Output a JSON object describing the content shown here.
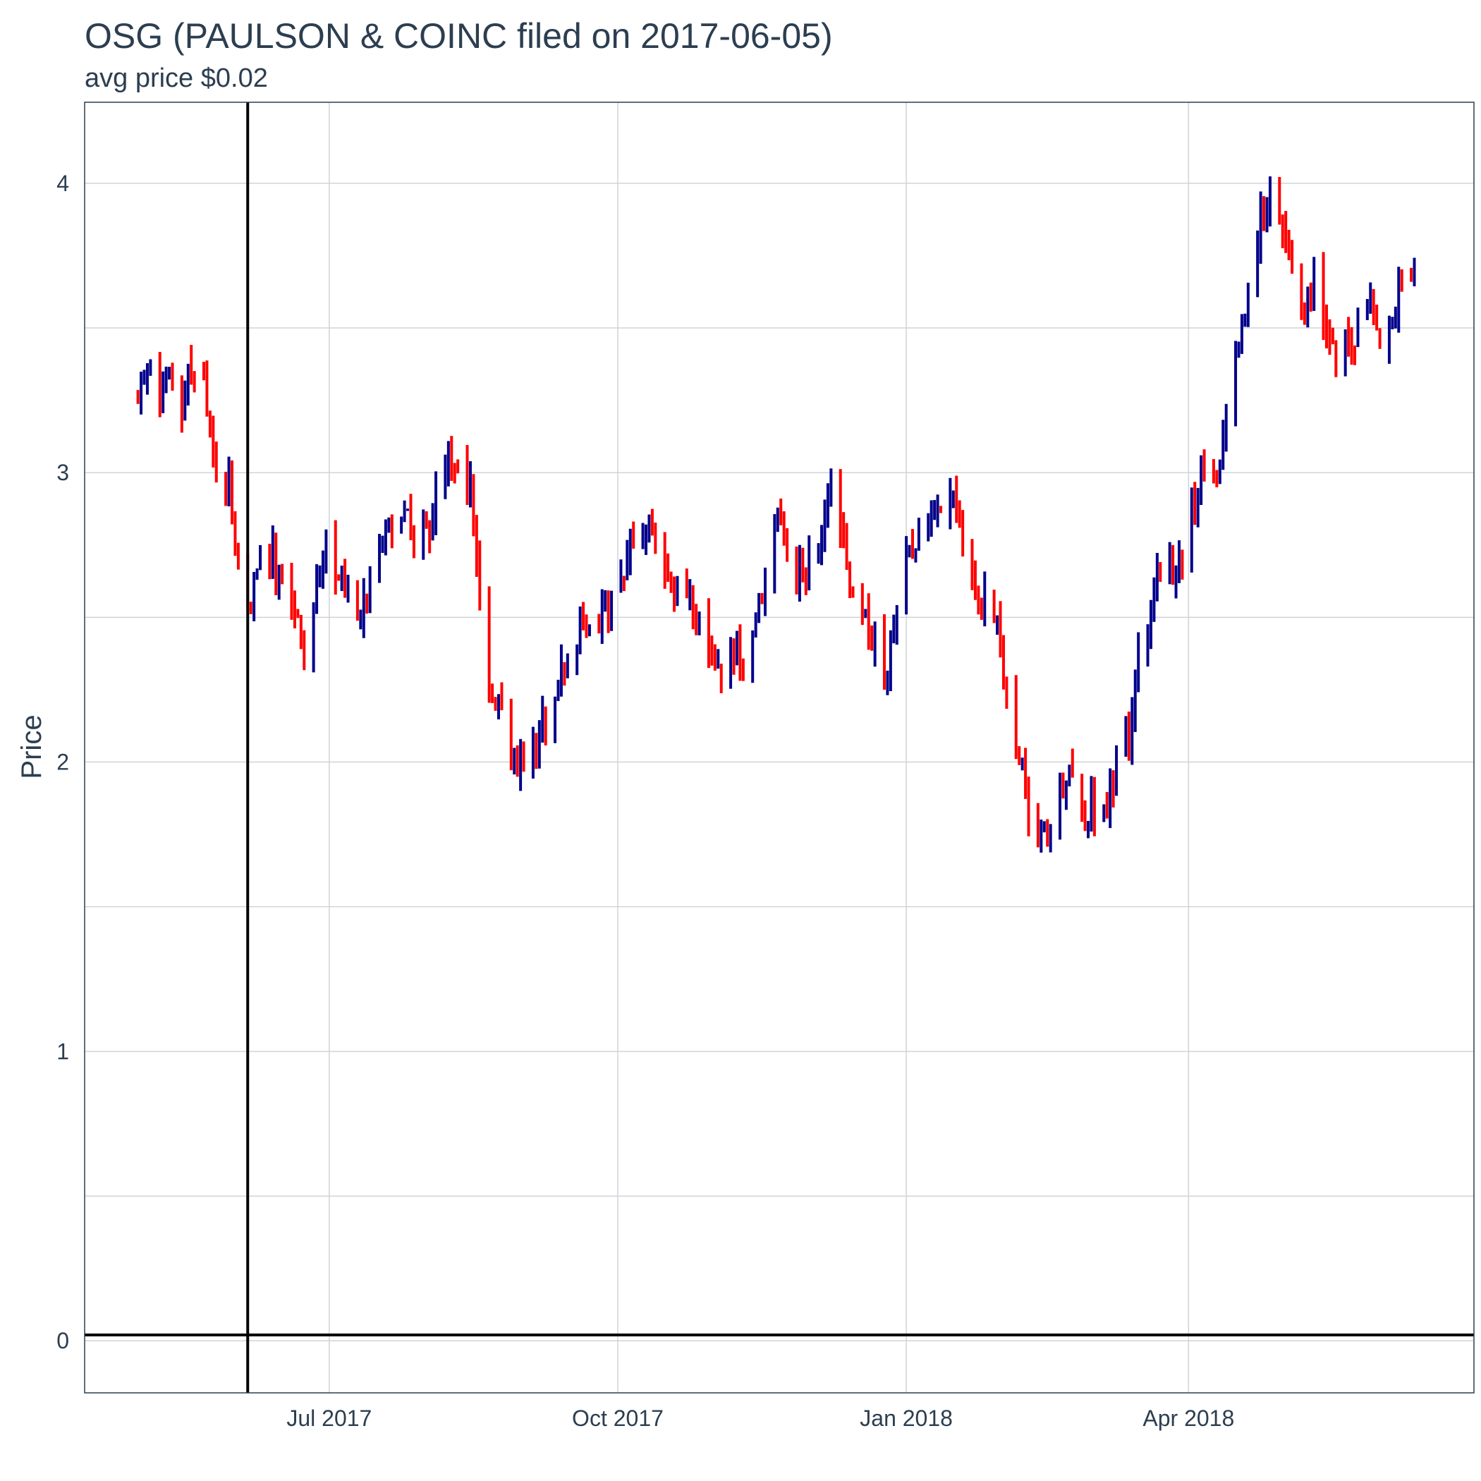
{
  "chart_data": {
    "type": "ohlc",
    "title": "OSG (PAULSON & COINC filed on 2017-06-05)",
    "subtitle": "avg price $0.02",
    "ylabel": "Price",
    "xlabel": "",
    "xlim": [
      "2017-04-14",
      "2018-07-01"
    ],
    "ylim": [
      -0.18,
      4.28
    ],
    "y_ticks": [
      0,
      1,
      2,
      3,
      4
    ],
    "x_ticks": [
      {
        "date": "2017-07-01",
        "label": "Jul 2017"
      },
      {
        "date": "2017-10-01",
        "label": "Oct 2017"
      },
      {
        "date": "2018-01-01",
        "label": "Jan 2018"
      },
      {
        "date": "2018-04-01",
        "label": "Apr 2018"
      }
    ],
    "grid": true,
    "reference_lines": {
      "filing_date": "2017-06-05",
      "avg_price": 0.02
    },
    "colors": {
      "up": "#00008b",
      "down": "#ff0000",
      "reference": "#000000",
      "grid": "#d0d3d8",
      "border": "#2c3e50",
      "text": "#2c3e50"
    },
    "series": [
      {
        "name": "",
        "control_points": [
          [
            "2017-05-01",
            3.25
          ],
          [
            "2017-05-04",
            3.38
          ],
          [
            "2017-05-08",
            3.22
          ],
          [
            "2017-05-11",
            3.3
          ],
          [
            "2017-05-15",
            3.25
          ],
          [
            "2017-05-18",
            3.35
          ],
          [
            "2017-05-22",
            3.28
          ],
          [
            "2017-05-25",
            3.05
          ],
          [
            "2017-05-30",
            2.95
          ],
          [
            "2017-06-02",
            2.65
          ],
          [
            "2017-06-05",
            2.55
          ],
          [
            "2017-06-09",
            2.65
          ],
          [
            "2017-06-13",
            2.72
          ],
          [
            "2017-06-16",
            2.6
          ],
          [
            "2017-06-20",
            2.5
          ],
          [
            "2017-06-23",
            2.42
          ],
          [
            "2017-06-27",
            2.6
          ],
          [
            "2017-06-30",
            2.75
          ],
          [
            "2017-07-05",
            2.6
          ],
          [
            "2017-07-10",
            2.5
          ],
          [
            "2017-07-14",
            2.6
          ],
          [
            "2017-07-19",
            2.8
          ],
          [
            "2017-07-24",
            2.9
          ],
          [
            "2017-07-28",
            2.75
          ],
          [
            "2017-08-02",
            2.8
          ],
          [
            "2017-08-07",
            3.05
          ],
          [
            "2017-08-11",
            3.0
          ],
          [
            "2017-08-15",
            2.95
          ],
          [
            "2017-08-18",
            2.6
          ],
          [
            "2017-08-21",
            2.28
          ],
          [
            "2017-08-25",
            2.15
          ],
          [
            "2017-08-29",
            2.0
          ],
          [
            "2017-09-01",
            2.0
          ],
          [
            "2017-09-06",
            2.1
          ],
          [
            "2017-09-11",
            2.25
          ],
          [
            "2017-09-15",
            2.35
          ],
          [
            "2017-09-20",
            2.5
          ],
          [
            "2017-09-25",
            2.45
          ],
          [
            "2017-10-01",
            2.6
          ],
          [
            "2017-10-06",
            2.75
          ],
          [
            "2017-10-11",
            2.8
          ],
          [
            "2017-10-16",
            2.65
          ],
          [
            "2017-10-20",
            2.55
          ],
          [
            "2017-10-25",
            2.55
          ],
          [
            "2017-10-30",
            2.45
          ],
          [
            "2017-11-03",
            2.3
          ],
          [
            "2017-11-08",
            2.35
          ],
          [
            "2017-11-13",
            2.45
          ],
          [
            "2017-11-17",
            2.6
          ],
          [
            "2017-11-21",
            2.85
          ],
          [
            "2017-11-27",
            2.65
          ],
          [
            "2017-12-01",
            2.7
          ],
          [
            "2017-12-05",
            2.8
          ],
          [
            "2017-12-08",
            2.95
          ],
          [
            "2017-12-11",
            2.85
          ],
          [
            "2017-12-14",
            2.55
          ],
          [
            "2017-12-18",
            2.5
          ],
          [
            "2017-12-21",
            2.45
          ],
          [
            "2017-12-26",
            2.3
          ],
          [
            "2017-12-29",
            2.55
          ],
          [
            "2018-01-03",
            2.75
          ],
          [
            "2018-01-08",
            2.85
          ],
          [
            "2018-01-12",
            2.9
          ],
          [
            "2018-01-16",
            2.9
          ],
          [
            "2018-01-19",
            2.75
          ],
          [
            "2018-01-23",
            2.65
          ],
          [
            "2018-01-26",
            2.55
          ],
          [
            "2018-01-30",
            2.45
          ],
          [
            "2018-02-02",
            2.25
          ],
          [
            "2018-02-06",
            2.05
          ],
          [
            "2018-02-09",
            1.85
          ],
          [
            "2018-02-13",
            1.75
          ],
          [
            "2018-02-16",
            1.8
          ],
          [
            "2018-02-20",
            1.9
          ],
          [
            "2018-02-23",
            2.0
          ],
          [
            "2018-02-27",
            1.8
          ],
          [
            "2018-03-02",
            1.85
          ],
          [
            "2018-03-06",
            1.8
          ],
          [
            "2018-03-09",
            2.0
          ],
          [
            "2018-03-13",
            2.1
          ],
          [
            "2018-03-16",
            2.4
          ],
          [
            "2018-03-20",
            2.5
          ],
          [
            "2018-03-23",
            2.7
          ],
          [
            "2018-03-27",
            2.65
          ],
          [
            "2018-03-30",
            2.7
          ],
          [
            "2018-04-03",
            2.9
          ],
          [
            "2018-04-06",
            3.05
          ],
          [
            "2018-04-10",
            2.95
          ],
          [
            "2018-04-13",
            3.2
          ],
          [
            "2018-04-17",
            3.4
          ],
          [
            "2018-04-20",
            3.6
          ],
          [
            "2018-04-24",
            3.9
          ],
          [
            "2018-04-27",
            3.95
          ],
          [
            "2018-05-01",
            3.85
          ],
          [
            "2018-05-04",
            3.7
          ],
          [
            "2018-05-08",
            3.55
          ],
          [
            "2018-05-11",
            3.7
          ],
          [
            "2018-05-15",
            3.5
          ],
          [
            "2018-05-18",
            3.35
          ],
          [
            "2018-05-22",
            3.45
          ],
          [
            "2018-05-25",
            3.5
          ],
          [
            "2018-05-29",
            3.55
          ],
          [
            "2018-06-01",
            3.45
          ],
          [
            "2018-06-05",
            3.55
          ],
          [
            "2018-06-08",
            3.65
          ],
          [
            "2018-06-12",
            3.65
          ]
        ]
      }
    ]
  }
}
